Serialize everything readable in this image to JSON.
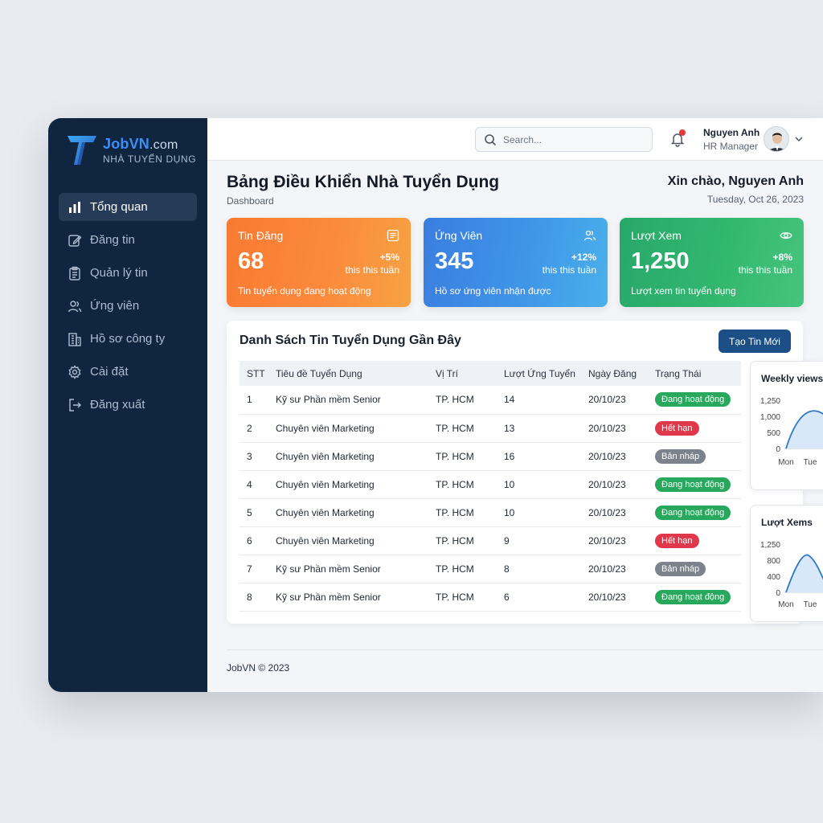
{
  "brand": {
    "name": "JobVN",
    "domain": ".com",
    "subtitle": "NHÀ TUYỂN DỤNG"
  },
  "sidebar": {
    "items": [
      {
        "label": "Tổng quan",
        "icon": "bar-chart-icon",
        "active": true
      },
      {
        "label": "Đăng tin",
        "icon": "edit-icon"
      },
      {
        "label": "Quản lý tin",
        "icon": "clipboard-icon"
      },
      {
        "label": "Ứng viên",
        "icon": "users-icon"
      },
      {
        "label": "Hồ sơ công ty",
        "icon": "building-icon"
      },
      {
        "label": "Cài đặt",
        "icon": "gear-icon"
      },
      {
        "label": "Đăng xuất",
        "icon": "logout-icon"
      }
    ]
  },
  "header": {
    "search_placeholder": "Search...",
    "user": {
      "name": "Nguyen Anh",
      "role": "HR Manager"
    }
  },
  "page": {
    "title": "Bảng Điều Khiển Nhà Tuyển Dụng",
    "subtitle": "Dashboard",
    "greeting": "Xin chào, Nguyen Anh",
    "date": "Tuesday, Oct 26, 2023"
  },
  "stats": [
    {
      "title": "Tin Đăng",
      "value": "68",
      "change": "+5%",
      "period": "this this tuần",
      "desc": "Tin tuyển dụng đang hoạt động",
      "icon": "list-icon"
    },
    {
      "title": "Ứng Viên",
      "value": "345",
      "change": "+12%",
      "period": "this this tuần",
      "desc": "Hồ sơ ứng viên nhận được",
      "icon": "users-icon"
    },
    {
      "title": "Lượt Xem",
      "value": "1,250",
      "change": "+8%",
      "period": "this this tuần",
      "desc": "Lượt xem tin tuyển dụng",
      "icon": "eye-icon"
    }
  ],
  "jobs": {
    "title": "Danh Sách Tin Tuyển Dụng Gần Đây",
    "new_button": "Tạo Tin Mới",
    "columns": [
      "STT",
      "Tiêu đề Tuyển Dụng",
      "Vị Trí",
      "Lượt Ứng Tuyển",
      "Ngày Đăng",
      "Trạng Thái"
    ],
    "rows": [
      {
        "stt": "1",
        "title": "Kỹ sư Phần mềm Senior",
        "location": "TP. HCM",
        "applicants": "14",
        "date": "20/10/23",
        "status": "Đang hoạt động",
        "status_type": "active"
      },
      {
        "stt": "2",
        "title": "Chuyên viên Marketing",
        "location": "TP. HCM",
        "applicants": "13",
        "date": "20/10/23",
        "status": "Hết hạn",
        "status_type": "expired"
      },
      {
        "stt": "3",
        "title": "Chuyên viên Marketing",
        "location": "TP. HCM",
        "applicants": "16",
        "date": "20/10/23",
        "status": "Bản nháp",
        "status_type": "draft"
      },
      {
        "stt": "4",
        "title": "Chuyên viên Marketing",
        "location": "TP. HCM",
        "applicants": "10",
        "date": "20/10/23",
        "status": "Đang hoạt động",
        "status_type": "active"
      },
      {
        "stt": "5",
        "title": "Chuyên viên Marketing",
        "location": "TP. HCM",
        "applicants": "10",
        "date": "20/10/23",
        "status": "Đang hoạt động",
        "status_type": "active"
      },
      {
        "stt": "6",
        "title": "Chuyên viên Marketing",
        "location": "TP. HCM",
        "applicants": "9",
        "date": "20/10/23",
        "status": "Hết hạn",
        "status_type": "expired"
      },
      {
        "stt": "7",
        "title": "Kỹ sư Phần mềm Senior",
        "location": "TP. HCM",
        "applicants": "8",
        "date": "20/10/23",
        "status": "Bản nháp",
        "status_type": "draft"
      },
      {
        "stt": "8",
        "title": "Kỹ sư Phần mềm Senior",
        "location": "TP. HCM",
        "applicants": "6",
        "date": "20/10/23",
        "status": "Đang hoạt động",
        "status_type": "active"
      }
    ]
  },
  "mini_charts": [
    {
      "title": "Weekly views",
      "yticks": [
        "1,250",
        "1,000",
        "500",
        "0"
      ],
      "xticks": [
        "Mon",
        "Tue"
      ]
    },
    {
      "title": "Lượt Xems",
      "yticks": [
        "1,250",
        "800",
        "400",
        "0"
      ],
      "xticks": [
        "Mon",
        "Tue"
      ]
    }
  ],
  "footer": {
    "text": "JobVN © 2023"
  },
  "colors": {
    "sidebar": "#0f2540",
    "accent": "#1c4f86",
    "active": "#27a85c",
    "expired": "#e0384a",
    "draft": "#7d838d"
  }
}
